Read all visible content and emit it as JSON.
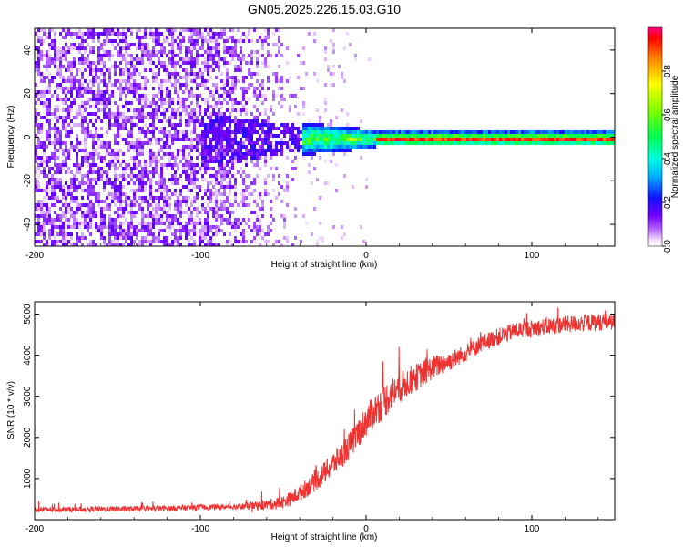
{
  "title": "GN05.2025.226.15.03.G10",
  "chart_data": [
    {
      "type": "heatmap",
      "xlabel": "Height of straight line (km)",
      "ylabel": "Frequency (Hz)",
      "xlim": [
        -200,
        150
      ],
      "ylim": [
        -50,
        50
      ],
      "x_ticks": [
        -200,
        -100,
        0,
        100
      ],
      "x_tick_labels": [
        "-200",
        "-100",
        "0",
        "100"
      ],
      "y_ticks": [
        -40,
        -20,
        0,
        20,
        40
      ],
      "y_tick_labels": [
        "-40",
        "-20",
        "0",
        "20",
        "40"
      ],
      "colorbar": {
        "label": "Normalized spectral amplitude",
        "range": [
          0,
          1
        ],
        "ticks": [
          0,
          0.2,
          0.4,
          0.6,
          0.8
        ],
        "tick_labels": [
          "0.0",
          "0.2",
          "0.4",
          "0.6",
          "0.8"
        ],
        "colormap": "rainbow (white-violet-blue-cyan-green-yellow-red)"
      },
      "features": {
        "noise_region_x": [
          -200,
          -40
        ],
        "signal_line_frequency_hz": 0,
        "signal_start_x": -45
      }
    },
    {
      "type": "line",
      "xlabel": "Height of straight line (km)",
      "ylabel": "SNR (10 * v/v)",
      "xlim": [
        -200,
        150
      ],
      "ylim": [
        0,
        5300
      ],
      "x_ticks": [
        -200,
        -100,
        0,
        100
      ],
      "x_tick_labels": [
        "-200",
        "-100",
        "0",
        "100"
      ],
      "y_ticks": [
        1000,
        2000,
        3000,
        4000,
        5000
      ],
      "y_tick_labels": [
        "1000",
        "2000",
        "3000",
        "4000",
        "5000"
      ],
      "series": [
        {
          "color": "#ee3333",
          "x": [
            -200,
            -175,
            -150,
            -125,
            -100,
            -85,
            -70,
            -60,
            -50,
            -45,
            -40,
            -35,
            -30,
            -25,
            -20,
            -15,
            -10,
            -5,
            0,
            5,
            10,
            15,
            20,
            25,
            30,
            40,
            50,
            60,
            70,
            80,
            90,
            100,
            110,
            120,
            130,
            140,
            150
          ],
          "values": [
            250,
            250,
            260,
            270,
            300,
            310,
            330,
            360,
            430,
            520,
            650,
            800,
            950,
            1150,
            1350,
            1550,
            1800,
            2100,
            2400,
            2650,
            2850,
            3050,
            3200,
            3350,
            3450,
            3700,
            3850,
            4050,
            4300,
            4450,
            4600,
            4650,
            4700,
            4750,
            4780,
            4800,
            4830
          ]
        }
      ]
    }
  ]
}
